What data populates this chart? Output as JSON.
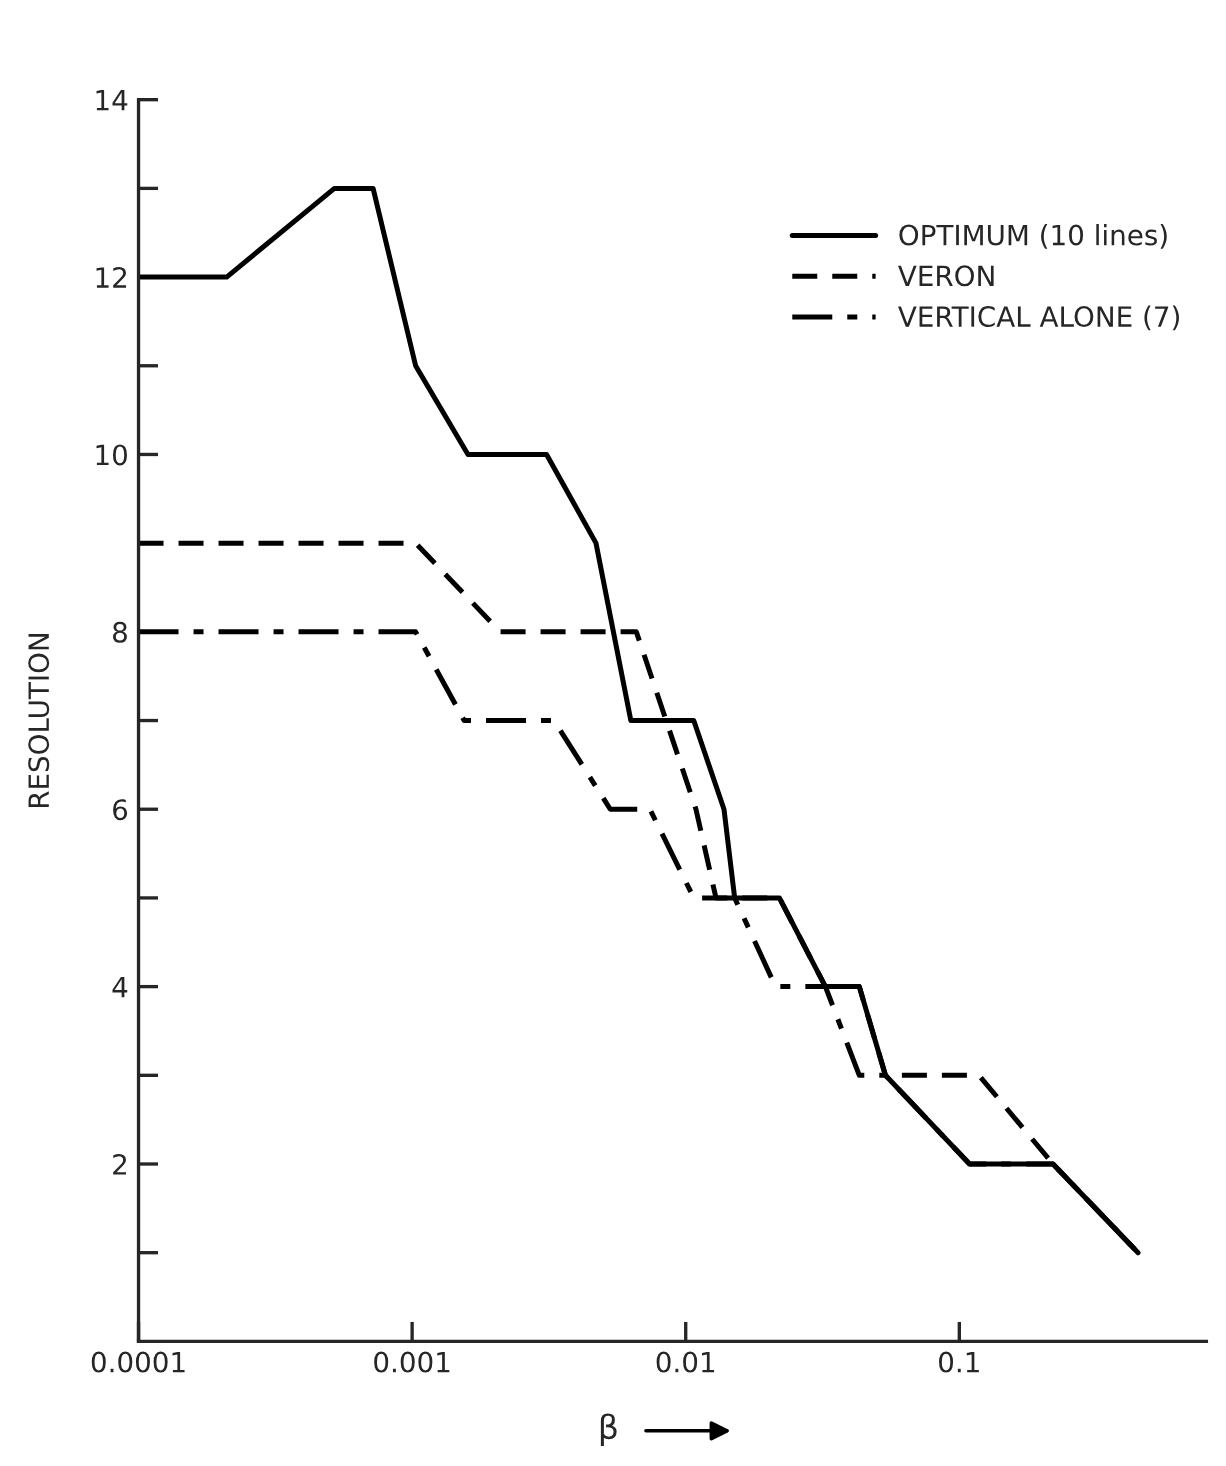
{
  "chart_data": {
    "type": "line",
    "xlabel": "β",
    "ylabel": "RESOLUTION",
    "log": "x",
    "xlim": [
      0.0001,
      0.8
    ],
    "xticks": [
      {
        "value": 0.0001,
        "label": "0.0001"
      },
      {
        "value": 0.001,
        "label": "0.001"
      },
      {
        "value": 0.01,
        "label": "0.01"
      },
      {
        "value": 0.1,
        "label": "0.1"
      }
    ],
    "ylim": [
      0,
      14
    ],
    "yticks": [
      {
        "value": 1,
        "label": null
      },
      2,
      {
        "value": 3,
        "label": null
      },
      4,
      {
        "value": 5,
        "label": null
      },
      6,
      {
        "value": 7,
        "label": null
      },
      8,
      {
        "value": 9,
        "label": null
      },
      10,
      {
        "value": 11,
        "label": null
      },
      12,
      {
        "value": 13,
        "label": null
      },
      14
    ],
    "grid": false,
    "legend": "top right",
    "marker": "none",
    "series": [
      {
        "name": "OPTIMUM (10 lines)",
        "color": "#000000",
        "line_style": "solid",
        "x": [
          0.0001,
          0.00021,
          0.00052,
          0.00072,
          0.00103,
          0.0016,
          0.0031,
          0.0047,
          0.0063,
          0.0107,
          0.0138,
          0.0151,
          0.022,
          0.0324,
          0.0431,
          0.0537,
          0.109,
          0.22,
          0.45
        ],
        "values": [
          12,
          12,
          13,
          13,
          11,
          10,
          10,
          9,
          7,
          7,
          6,
          5,
          5,
          4,
          4,
          3,
          2,
          2,
          1
        ]
      },
      {
        "name": "VERON",
        "color": "#000000",
        "line_style": "dashed",
        "x": [
          0.0001,
          0.00103,
          0.0021,
          0.0066,
          0.0109,
          0.0129,
          0.022,
          0.0324,
          0.0431,
          0.0537,
          0.118,
          0.22,
          0.45
        ],
        "values": [
          9,
          9,
          8,
          8,
          6,
          5,
          5,
          4,
          4,
          3,
          3,
          2,
          1
        ]
      },
      {
        "name": "VERTICAL ALONE (7)",
        "color": "#000000",
        "line_style": "dashdot",
        "x": [
          0.0001,
          0.00103,
          0.00155,
          0.0033,
          0.0053,
          0.0074,
          0.0107,
          0.0151,
          0.0213,
          0.0324,
          0.0431,
          0.0537,
          0.109,
          0.22,
          0.45
        ],
        "values": [
          8,
          8,
          7,
          7,
          6,
          6,
          5,
          5,
          4,
          4,
          3,
          3,
          2,
          2,
          1
        ]
      }
    ]
  }
}
